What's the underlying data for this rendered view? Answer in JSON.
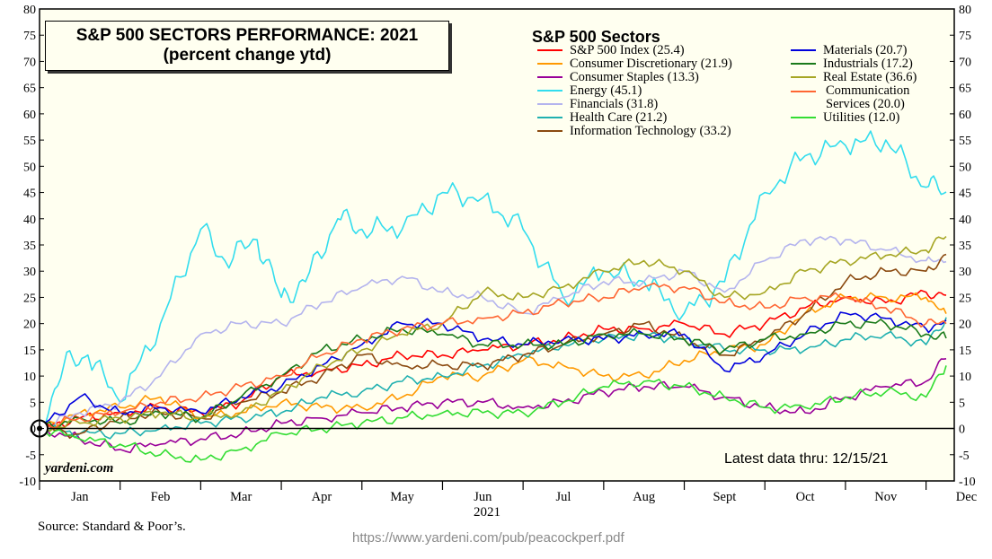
{
  "chart_data": {
    "type": "line",
    "title": "S&P 500 SECTORS PERFORMANCE: 2021",
    "subtitle": "(percent change ytd)",
    "legend_title": "S&P 500 Sectors",
    "xlabel": "2021",
    "months": [
      "Jan",
      "Feb",
      "Mar",
      "Apr",
      "May",
      "Jun",
      "Jul",
      "Aug",
      "Sept",
      "Oct",
      "Nov",
      "Dec"
    ],
    "ylim": [
      -10,
      80
    ],
    "yticks": [
      -10,
      -5,
      0,
      5,
      10,
      15,
      20,
      25,
      30,
      35,
      40,
      45,
      50,
      55,
      60,
      65,
      70,
      75,
      80
    ],
    "x_range": [
      0,
      11.35
    ],
    "series": [
      {
        "name": "S&P 500 Index (25.4)",
        "color": "#ff0000",
        "x": [
          0,
          0.5,
          1,
          1.5,
          2,
          2.5,
          3,
          3.5,
          4,
          4.5,
          5,
          5.5,
          6,
          6.5,
          7,
          7.5,
          8,
          8.5,
          9,
          9.5,
          10,
          10.5,
          11,
          11.25
        ],
        "values": [
          0,
          2,
          3,
          4,
          3,
          5,
          10,
          11,
          12,
          14,
          14,
          15,
          16,
          17,
          19,
          19,
          20,
          18,
          20,
          23,
          25,
          24,
          26,
          25.4
        ]
      },
      {
        "name": "Consumer Discretionary (21.9)",
        "color": "#ff9900",
        "x": [
          0,
          0.5,
          1,
          1.5,
          2,
          2.5,
          3,
          3.5,
          4,
          4.5,
          5,
          5.5,
          6,
          6.5,
          7,
          7.5,
          8,
          8.5,
          9,
          9.5,
          10,
          10.5,
          11,
          11.25
        ],
        "values": [
          0,
          3,
          4,
          6,
          2,
          3,
          5,
          4,
          4,
          6,
          10,
          10,
          13,
          12,
          10,
          10,
          13,
          15,
          16,
          22,
          25,
          25,
          25,
          21.9
        ]
      },
      {
        "name": "Consumer Staples (13.3)",
        "color": "#990099",
        "x": [
          0,
          0.5,
          1,
          1.5,
          2,
          2.5,
          3,
          3.5,
          4,
          4.5,
          5,
          5.5,
          6,
          6.5,
          7,
          7.5,
          8,
          8.5,
          9,
          9.5,
          10,
          10.5,
          11,
          11.25
        ],
        "values": [
          0,
          -2,
          -4,
          -3,
          -2,
          -1,
          1,
          2,
          3,
          4,
          5,
          5,
          4,
          5,
          7,
          8,
          8,
          6,
          4,
          3,
          6,
          8,
          9,
          13.3
        ]
      },
      {
        "name": "Energy (45.1)",
        "color": "#33ddee",
        "x": [
          0,
          0.3,
          0.6,
          1,
          1.5,
          2,
          2.3,
          2.7,
          3,
          3.3,
          3.7,
          4,
          4.5,
          5,
          5.5,
          6,
          6.5,
          7,
          7.5,
          8,
          8.5,
          9,
          9.5,
          10,
          10.5,
          11,
          11.25
        ],
        "values": [
          0,
          12,
          14,
          5,
          20,
          38,
          32,
          36,
          25,
          28,
          40,
          38,
          38,
          45,
          44,
          38,
          25,
          30,
          28,
          22,
          28,
          45,
          52,
          54,
          55,
          46,
          45.1
        ]
      },
      {
        "name": "Financials (31.8)",
        "color": "#b4b4ee",
        "x": [
          0,
          0.5,
          1,
          1.5,
          2,
          2.5,
          3,
          3.5,
          4,
          4.5,
          5,
          5.5,
          6,
          6.5,
          7,
          7.5,
          8,
          8.5,
          9,
          9.5,
          10,
          10.5,
          11,
          11.25
        ],
        "values": [
          0,
          3,
          5,
          10,
          18,
          20,
          20,
          24,
          27,
          29,
          26,
          25,
          22,
          25,
          28,
          28,
          30,
          26,
          32,
          36,
          36,
          34,
          32,
          31.8
        ]
      },
      {
        "name": "Health Care (21.2)",
        "color": "#20b0b0",
        "x": [
          0,
          0.5,
          1,
          1.5,
          2,
          2.5,
          3,
          3.5,
          4,
          4.5,
          5,
          5.5,
          6,
          6.5,
          7,
          7.5,
          8,
          8.5,
          9,
          9.5,
          10,
          10.5,
          11,
          11.25
        ],
        "values": [
          0,
          -1,
          -1,
          0,
          1,
          2,
          3,
          6,
          7,
          9,
          10,
          12,
          14,
          16,
          17,
          18,
          17,
          15,
          15,
          15,
          17,
          18,
          16,
          21.2
        ]
      },
      {
        "name": "Information Technology (33.2)",
        "color": "#8b4a10",
        "x": [
          0,
          0.5,
          1,
          1.5,
          2,
          2.5,
          3,
          3.5,
          4,
          4.5,
          5,
          5.5,
          6,
          6.5,
          7,
          7.5,
          8,
          8.5,
          9,
          9.5,
          10,
          10.5,
          11,
          11.25
        ],
        "values": [
          0,
          -1,
          2,
          3,
          2,
          5,
          7,
          10,
          14,
          12,
          12,
          12,
          14,
          16,
          18,
          20,
          17,
          14,
          17,
          22,
          28,
          30,
          30,
          33.2
        ]
      },
      {
        "name": "Materials (20.7)",
        "color": "#0000dd",
        "x": [
          0,
          0.5,
          1,
          1.5,
          2,
          2.5,
          3,
          3.5,
          4,
          4.5,
          5,
          5.5,
          6,
          6.5,
          7,
          7.5,
          8,
          8.5,
          9,
          9.5,
          10,
          10.5,
          11,
          11.25
        ],
        "values": [
          0,
          6,
          3,
          4,
          3,
          6,
          8,
          12,
          16,
          20,
          20,
          17,
          16,
          17,
          17,
          18,
          18,
          11,
          14,
          18,
          22,
          21,
          19,
          20.7
        ]
      },
      {
        "name": "Industrials (17.2)",
        "color": "#1a7a1a",
        "x": [
          0,
          0.5,
          1,
          1.5,
          2,
          2.5,
          3,
          3.5,
          4,
          4.5,
          5,
          5.5,
          6,
          6.5,
          7,
          7.5,
          8,
          8.5,
          9,
          9.5,
          10,
          10.5,
          11,
          11.25
        ],
        "values": [
          0,
          2,
          1,
          3,
          2,
          6,
          10,
          15,
          17,
          19,
          18,
          16,
          16,
          16,
          18,
          18,
          17,
          15,
          17,
          18,
          20,
          20,
          18,
          17.2
        ]
      },
      {
        "name": "Real Estate (36.6)",
        "color": "#a6a624",
        "x": [
          0,
          0.5,
          1,
          1.5,
          2,
          2.5,
          3,
          3.5,
          4,
          4.5,
          5,
          5.5,
          6,
          6.5,
          7,
          7.5,
          8,
          8.5,
          9,
          9.5,
          10,
          10.5,
          11,
          11.25
        ],
        "values": [
          0,
          1,
          2,
          3,
          2,
          3,
          7,
          12,
          15,
          18,
          20,
          26,
          25,
          27,
          30,
          32,
          30,
          25,
          26,
          30,
          32,
          33,
          34,
          36.6
        ]
      },
      {
        "name": "Communication Services (20.0)",
        "color": "#ff6633",
        "x": [
          0,
          0.5,
          1,
          1.5,
          2,
          2.5,
          3,
          3.5,
          4,
          4.5,
          5,
          5.5,
          6,
          6.5,
          7,
          7.5,
          8,
          8.5,
          9,
          9.5,
          10,
          10.5,
          11,
          11.25
        ],
        "values": [
          0,
          2,
          3,
          5,
          6,
          8,
          10,
          14,
          17,
          19,
          20,
          21,
          22,
          24,
          25,
          27,
          27,
          24,
          23,
          25,
          25,
          23,
          20,
          20.0
        ]
      },
      {
        "name": "Utilities (12.0)",
        "color": "#33dd33",
        "x": [
          0,
          0.5,
          1,
          1.5,
          2,
          2.5,
          3,
          3.5,
          4,
          4.5,
          5,
          5.5,
          6,
          6.5,
          7,
          7.5,
          8,
          8.5,
          9,
          9.5,
          10,
          10.5,
          11,
          11.25
        ],
        "values": [
          0,
          -2,
          -3,
          -5,
          -6,
          -4,
          -1,
          0,
          1,
          2,
          3,
          3,
          3,
          5,
          8,
          9,
          8,
          6,
          4,
          4,
          6,
          7,
          6,
          12.0
        ]
      }
    ]
  },
  "labels": {
    "title_line1": "S&P 500 SECTORS PERFORMANCE: 2021",
    "title_line2": "(percent change ytd)",
    "legend_title": "S&P 500 Sectors",
    "watermark": "yardeni.com",
    "latest": "Latest data thru: 12/15/21",
    "xlabel": "2021",
    "source": "Source: Standard & Poor’s.",
    "url": "https://www.yardeni.com/pub/peacockperf.pdf"
  }
}
